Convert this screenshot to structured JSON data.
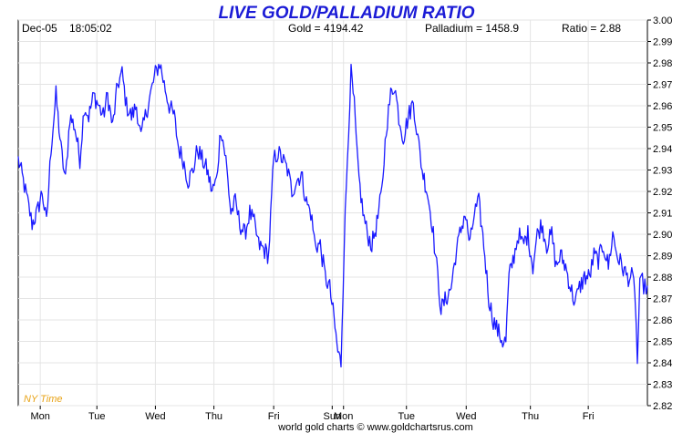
{
  "header": {
    "date": "Dec-05",
    "time": "18:05:02",
    "gold": "Gold = 4194.42",
    "palladium": "Palladium = 1458.9",
    "ratio": "Ratio = 2.88"
  },
  "timezone_label": "NY Time",
  "footer": "world gold charts © www.goldchartsrus.com",
  "colors": {
    "line": "#1a1aff",
    "title": "#1b1bd6",
    "grid": "#e4e4e4",
    "timezone": "#e8a317"
  },
  "chart_data": {
    "type": "line",
    "title": "LIVE GOLD/PALLADIUM RATIO",
    "ylim": [
      2.82,
      3.0
    ],
    "y_ticks": [
      "3.00",
      "2.99",
      "2.98",
      "2.97",
      "2.96",
      "2.95",
      "2.94",
      "2.93",
      "2.92",
      "2.91",
      "2.90",
      "2.89",
      "2.88",
      "2.87",
      "2.86",
      "2.85",
      "2.84",
      "2.83",
      "2.82"
    ],
    "x_labels": [
      "Mon",
      "Tue",
      "Wed",
      "Thu",
      "Fri",
      "Sun",
      "Mon",
      "Tue",
      "Wed",
      "Thu",
      "Fri"
    ],
    "xlim": [
      0,
      100
    ],
    "x_tick_positions": [
      3.5,
      12.5,
      21.8,
      31.1,
      40.6,
      49.9,
      51.7,
      61.7,
      71.2,
      81.4,
      90.6
    ],
    "grid": true,
    "series": [
      {
        "values": [
          [
            0,
            2.935
          ],
          [
            0.8,
            2.925
          ],
          [
            1.5,
            2.915
          ],
          [
            2.2,
            2.905
          ],
          [
            3.0,
            2.91
          ],
          [
            3.8,
            2.92
          ],
          [
            4.5,
            2.905
          ],
          [
            5.2,
            2.94
          ],
          [
            6.0,
            2.965
          ],
          [
            6.8,
            2.94
          ],
          [
            7.5,
            2.925
          ],
          [
            8.2,
            2.955
          ],
          [
            9.0,
            2.95
          ],
          [
            9.8,
            2.935
          ],
          [
            10.5,
            2.96
          ],
          [
            11.2,
            2.955
          ],
          [
            12.0,
            2.965
          ],
          [
            12.8,
            2.96
          ],
          [
            13.5,
            2.955
          ],
          [
            14.2,
            2.965
          ],
          [
            15.0,
            2.95
          ],
          [
            15.8,
            2.97
          ],
          [
            16.5,
            2.975
          ],
          [
            17.2,
            2.96
          ],
          [
            18.0,
            2.955
          ],
          [
            18.8,
            2.96
          ],
          [
            19.5,
            2.945
          ],
          [
            20.2,
            2.955
          ],
          [
            21.0,
            2.965
          ],
          [
            21.8,
            2.975
          ],
          [
            22.5,
            2.98
          ],
          [
            23.2,
            2.97
          ],
          [
            24.0,
            2.96
          ],
          [
            24.8,
            2.955
          ],
          [
            25.5,
            2.94
          ],
          [
            26.2,
            2.935
          ],
          [
            27.0,
            2.925
          ],
          [
            27.8,
            2.93
          ],
          [
            28.5,
            2.94
          ],
          [
            29.2,
            2.935
          ],
          [
            30.0,
            2.93
          ],
          [
            30.8,
            2.92
          ],
          [
            31.5,
            2.925
          ],
          [
            32.2,
            2.95
          ],
          [
            33.0,
            2.935
          ],
          [
            33.8,
            2.91
          ],
          [
            34.5,
            2.915
          ],
          [
            35.2,
            2.905
          ],
          [
            36.0,
            2.9
          ],
          [
            36.8,
            2.91
          ],
          [
            37.5,
            2.905
          ],
          [
            38.2,
            2.895
          ],
          [
            39.0,
            2.893
          ],
          [
            39.8,
            2.89
          ],
          [
            40.6,
            2.935
          ],
          [
            41.3,
            2.938
          ],
          [
            42.0,
            2.935
          ],
          [
            42.8,
            2.93
          ],
          [
            43.5,
            2.92
          ],
          [
            44.2,
            2.925
          ],
          [
            45.0,
            2.928
          ],
          [
            45.8,
            2.915
          ],
          [
            46.5,
            2.91
          ],
          [
            47.2,
            2.895
          ],
          [
            48.0,
            2.895
          ],
          [
            48.8,
            2.88
          ],
          [
            49.5,
            2.875
          ],
          [
            50.2,
            2.86
          ],
          [
            50.8,
            2.845
          ],
          [
            51.3,
            2.84
          ],
          [
            51.8,
            2.895
          ],
          [
            52.5,
            2.95
          ],
          [
            52.9,
            2.975
          ],
          [
            53.4,
            2.96
          ],
          [
            54.0,
            2.93
          ],
          [
            54.8,
            2.91
          ],
          [
            55.5,
            2.9
          ],
          [
            56.2,
            2.895
          ],
          [
            57.0,
            2.905
          ],
          [
            57.8,
            2.92
          ],
          [
            58.5,
            2.95
          ],
          [
            59.2,
            2.965
          ],
          [
            59.8,
            2.97
          ],
          [
            60.5,
            2.955
          ],
          [
            61.2,
            2.945
          ],
          [
            62.0,
            2.955
          ],
          [
            62.8,
            2.962
          ],
          [
            63.5,
            2.945
          ],
          [
            64.2,
            2.93
          ],
          [
            65.0,
            2.92
          ],
          [
            65.8,
            2.905
          ],
          [
            66.5,
            2.885
          ],
          [
            67.2,
            2.865
          ],
          [
            68.0,
            2.87
          ],
          [
            68.8,
            2.875
          ],
          [
            69.5,
            2.89
          ],
          [
            70.2,
            2.9
          ],
          [
            71.0,
            2.91
          ],
          [
            71.8,
            2.895
          ],
          [
            72.5,
            2.91
          ],
          [
            73.2,
            2.915
          ],
          [
            74.0,
            2.895
          ],
          [
            74.8,
            2.87
          ],
          [
            75.5,
            2.86
          ],
          [
            76.2,
            2.855
          ],
          [
            77.0,
            2.85
          ],
          [
            77.5,
            2.85
          ],
          [
            78.0,
            2.88
          ],
          [
            78.8,
            2.89
          ],
          [
            79.5,
            2.9
          ],
          [
            80.2,
            2.895
          ],
          [
            81.0,
            2.9
          ],
          [
            81.8,
            2.885
          ],
          [
            82.5,
            2.9
          ],
          [
            83.2,
            2.905
          ],
          [
            84.0,
            2.895
          ],
          [
            84.8,
            2.9
          ],
          [
            85.5,
            2.885
          ],
          [
            86.2,
            2.89
          ],
          [
            87.0,
            2.885
          ],
          [
            87.8,
            2.875
          ],
          [
            88.5,
            2.868
          ],
          [
            89.2,
            2.875
          ],
          [
            90.0,
            2.88
          ],
          [
            90.8,
            2.88
          ],
          [
            91.5,
            2.89
          ],
          [
            92.2,
            2.888
          ],
          [
            93.0,
            2.895
          ],
          [
            93.8,
            2.885
          ],
          [
            94.5,
            2.9
          ],
          [
            95.2,
            2.89
          ],
          [
            96.0,
            2.885
          ],
          [
            96.8,
            2.88
          ],
          [
            97.5,
            2.88
          ],
          [
            98.0,
            2.875
          ],
          [
            98.4,
            2.84
          ],
          [
            98.8,
            2.875
          ],
          [
            99.2,
            2.878
          ],
          [
            99.6,
            2.875
          ],
          [
            100,
            2.876
          ]
        ]
      }
    ]
  }
}
